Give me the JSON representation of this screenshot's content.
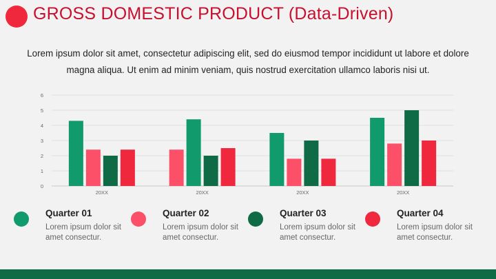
{
  "slide": {
    "title": "GROSS DOMESTIC PRODUCT (Data-Driven)",
    "description": "Lorem ipsum dolor sit amet, consectetur adipiscing elit, sed do eiusmod tempor incididunt ut labore et dolore magna aliqua. Ut enim ad minim veniam, quis nostrud exercitation ullamco laboris nisi ut.",
    "accent_color": "#f0283e",
    "title_color": "#c8102e",
    "footer_color": "#0e6b46"
  },
  "legend": [
    {
      "title": "Quarter 01",
      "text": "Lorem ipsum dolor sit amet consectur.",
      "color": "#119a6b"
    },
    {
      "title": "Quarter 02",
      "text": "Lorem ipsum dolor sit amet consectur.",
      "color": "#fb5068"
    },
    {
      "title": "Quarter 03",
      "text": "Lorem ipsum dolor sit amet consectur.",
      "color": "#0e6b46"
    },
    {
      "title": "Quarter 04",
      "text": "Lorem ipsum dolor sit amet consectur.",
      "color": "#f0283e"
    }
  ],
  "chart_data": {
    "type": "bar",
    "categories": [
      "20XX",
      "20XX",
      "20XX",
      "20XX"
    ],
    "series": [
      {
        "values": [
          4.3,
          4.4,
          3.5,
          4.5
        ],
        "color": "#119a6b"
      },
      {
        "values": [
          2.4,
          2.4,
          1.8,
          2.8
        ],
        "color": "#fb5068"
      },
      {
        "values": [
          2.0,
          2.0,
          3.0,
          5.0
        ],
        "color": "#0e6b46"
      },
      {
        "values": [
          2.4,
          2.5,
          1.8,
          3.0
        ],
        "color": "#f0283e"
      }
    ],
    "series_order_per_group": [
      [
        0,
        1,
        2,
        3
      ],
      [
        1,
        0,
        2,
        3
      ],
      [
        0,
        1,
        2,
        3
      ],
      [
        0,
        1,
        2,
        3
      ]
    ],
    "ylim": [
      0,
      6
    ],
    "yticks": [
      "0",
      "1",
      "2",
      "3",
      "4",
      "5",
      "6"
    ],
    "grid": true,
    "xlabel": "",
    "ylabel": ""
  }
}
